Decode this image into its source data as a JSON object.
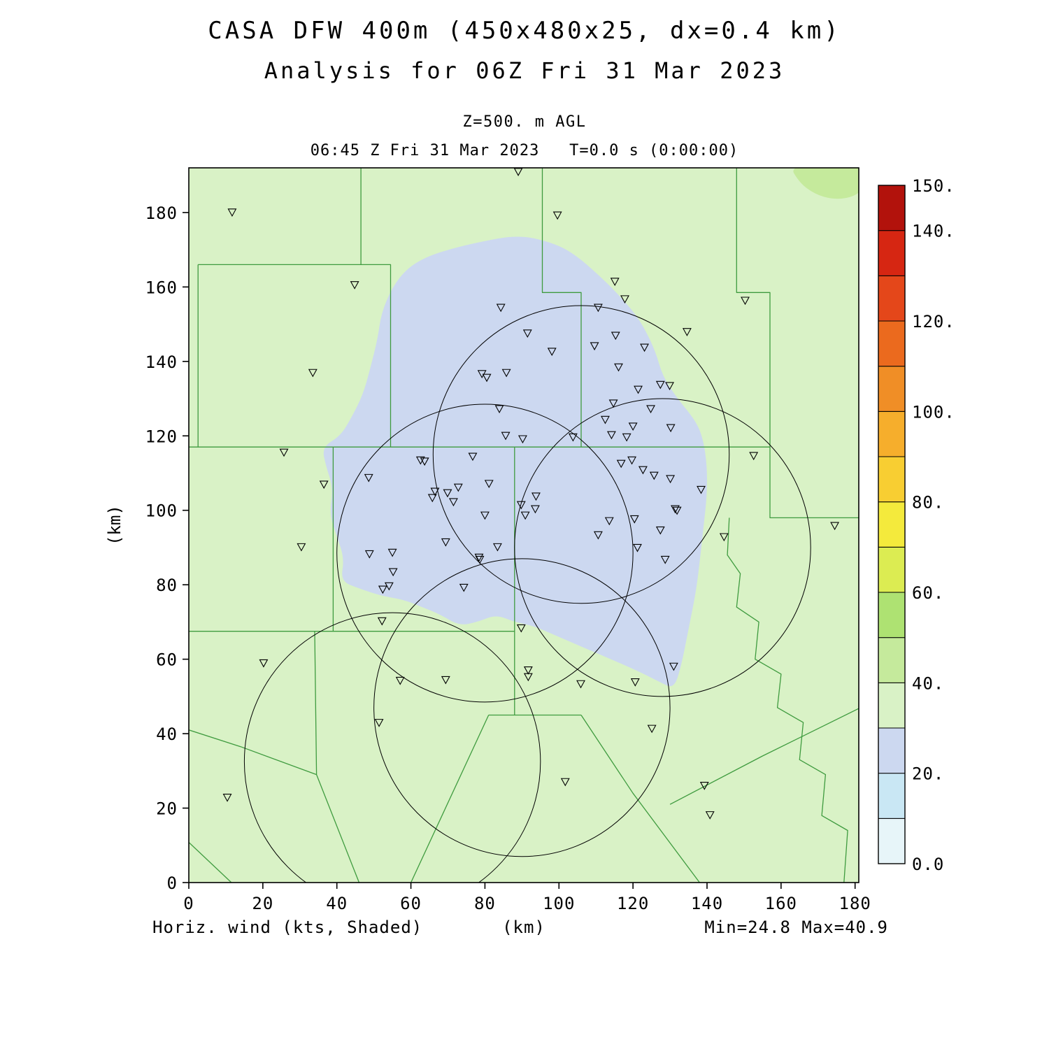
{
  "header": {
    "title1": "CASA DFW 400m (450x480x25, dx=0.4 km)",
    "title2": "Analysis for 06Z Fri 31 Mar 2023",
    "level_label": "Z=500. m AGL",
    "time_label": "06:45 Z Fri 31 Mar 2023   T=0.0 s (0:00:00)"
  },
  "footer": {
    "field_label": "Horiz. wind (kts, Shaded)",
    "axis_unit": "(km)",
    "minmax_label": "Min=24.8 Max=40.9"
  },
  "chart_data": {
    "type": "heatmap",
    "title": "CASA DFW 400m (450x480x25, dx=0.4 km)",
    "subtitle": "Analysis for 06Z Fri 31 Mar 2023",
    "level": "Z=500. m AGL",
    "valid_time": "06:45 Z Fri 31 Mar 2023",
    "forecast_time": "T=0.0 s (0:00:00)",
    "field": "Horiz. wind (kts, Shaded)",
    "min": 24.8,
    "max": 40.9,
    "xlabel": "(km)",
    "ylabel": "(km)",
    "xlim": [
      0,
      181
    ],
    "ylim": [
      0,
      192
    ],
    "xticks": [
      0,
      20,
      40,
      60,
      80,
      100,
      120,
      140,
      160,
      180
    ],
    "yticks": [
      0,
      20,
      40,
      60,
      80,
      100,
      120,
      140,
      160,
      180
    ],
    "grid": false,
    "colorbar": {
      "min": 0,
      "max": 150,
      "step": 10,
      "tick_values": [
        0,
        20,
        40,
        60,
        80,
        100,
        120,
        140,
        150
      ],
      "tick_labels": [
        "0.0",
        "20.",
        "40.",
        "60.",
        "80.",
        "100.",
        "120.",
        "140.",
        "150."
      ],
      "colors_bottom_to_top": [
        "#E7F5F9",
        "#C9E7F4",
        "#CCD8F0",
        "#D9F2C6",
        "#C5EA9C",
        "#AEE272",
        "#DCEC52",
        "#F4EA3C",
        "#F8CE32",
        "#F6AE2C",
        "#F08E26",
        "#EB6A1E",
        "#E4471A",
        "#D62612",
        "#B2120C"
      ]
    },
    "background_band": {
      "range": [
        30,
        40
      ],
      "color": "#D9F2C6"
    },
    "shaded_regions": [
      {
        "name": "wind-20-30-kts",
        "band": [
          20,
          30
        ],
        "color": "#CCD8F0",
        "polygon": [
          [
            89,
            174
          ],
          [
            98,
            172
          ],
          [
            104,
            169
          ],
          [
            111,
            163
          ],
          [
            117,
            157
          ],
          [
            122,
            151
          ],
          [
            126,
            143
          ],
          [
            128,
            136
          ],
          [
            132,
            130
          ],
          [
            137,
            124
          ],
          [
            139,
            119
          ],
          [
            140,
            112
          ],
          [
            140,
            104
          ],
          [
            139,
            95
          ],
          [
            138,
            86
          ],
          [
            137,
            78
          ],
          [
            135,
            68
          ],
          [
            133,
            58
          ],
          [
            131,
            52
          ],
          [
            127,
            54
          ],
          [
            121,
            57
          ],
          [
            114,
            60
          ],
          [
            107,
            63
          ],
          [
            100,
            66
          ],
          [
            93,
            69
          ],
          [
            88,
            70
          ],
          [
            83,
            72
          ],
          [
            78,
            70
          ],
          [
            73,
            69
          ],
          [
            68,
            72
          ],
          [
            63,
            74
          ],
          [
            58,
            76
          ],
          [
            52,
            77
          ],
          [
            46,
            79
          ],
          [
            41,
            81
          ],
          [
            42,
            87
          ],
          [
            40,
            93
          ],
          [
            38,
            99
          ],
          [
            39,
            106
          ],
          [
            37,
            112
          ],
          [
            36,
            117
          ],
          [
            41,
            120
          ],
          [
            44,
            125
          ],
          [
            47,
            131
          ],
          [
            49,
            138
          ],
          [
            51,
            146
          ],
          [
            52,
            153
          ],
          [
            55,
            160
          ],
          [
            59,
            165
          ],
          [
            64,
            168
          ],
          [
            70,
            170
          ],
          [
            78,
            172
          ]
        ]
      },
      {
        "name": "wind-40-50-kts",
        "band": [
          40,
          50
        ],
        "color": "#C5EA9C",
        "polygon": [
          [
            162,
            193
          ],
          [
            165,
            188
          ],
          [
            169,
            185
          ],
          [
            174,
            183.5
          ],
          [
            179,
            184
          ],
          [
            182,
            186
          ],
          [
            183,
            193
          ]
        ]
      }
    ],
    "radar_range_rings": {
      "radius_km": 40,
      "centers": [
        [
          106,
          115
        ],
        [
          80,
          88.5
        ],
        [
          128,
          90
        ],
        [
          55,
          32.5
        ],
        [
          90,
          47
        ]
      ]
    },
    "stations": [
      [
        11.7,
        180.1
      ],
      [
        89,
        191
      ],
      [
        99.6,
        179.3
      ],
      [
        44.8,
        160.6
      ],
      [
        115.1,
        161.5
      ],
      [
        117.8,
        156.8
      ],
      [
        110.6,
        154.5
      ],
      [
        150.3,
        156.4
      ],
      [
        84.3,
        154.5
      ],
      [
        91.5,
        147.6
      ],
      [
        115.3,
        147.0
      ],
      [
        134.6,
        148.0
      ],
      [
        98.1,
        142.7
      ],
      [
        109.6,
        144.2
      ],
      [
        123.1,
        143.8
      ],
      [
        33.5,
        137.0
      ],
      [
        79.2,
        136.7
      ],
      [
        85.8,
        137.0
      ],
      [
        80.5,
        135.7
      ],
      [
        116.1,
        138.5
      ],
      [
        121.4,
        132.5
      ],
      [
        127.4,
        133.8
      ],
      [
        129.9,
        133.5
      ],
      [
        114.7,
        128.8
      ],
      [
        124.8,
        127.3
      ],
      [
        83.9,
        127.3
      ],
      [
        112.5,
        124.4
      ],
      [
        120.0,
        122.6
      ],
      [
        130.2,
        122.2
      ],
      [
        114.2,
        120.3
      ],
      [
        118.3,
        119.7
      ],
      [
        85.6,
        120.1
      ],
      [
        90.2,
        119.2
      ],
      [
        103.8,
        119.7
      ],
      [
        25.7,
        115.6
      ],
      [
        76.7,
        114.5
      ],
      [
        152.6,
        114.7
      ],
      [
        62.6,
        113.5
      ],
      [
        63.7,
        113.2
      ],
      [
        116.8,
        112.6
      ],
      [
        119.7,
        113.5
      ],
      [
        122.7,
        110.9
      ],
      [
        125.7,
        109.4
      ],
      [
        48.6,
        108.8
      ],
      [
        36.5,
        107.0
      ],
      [
        66.5,
        105.1
      ],
      [
        69.9,
        104.7
      ],
      [
        72.8,
        106.2
      ],
      [
        81.1,
        107.2
      ],
      [
        130.1,
        108.5
      ],
      [
        138.4,
        105.6
      ],
      [
        65.8,
        103.4
      ],
      [
        71.5,
        102.3
      ],
      [
        93.8,
        103.8
      ],
      [
        93.6,
        100.4
      ],
      [
        89.8,
        101.5
      ],
      [
        80.0,
        98.7
      ],
      [
        90.9,
        98.7
      ],
      [
        113.6,
        97.2
      ],
      [
        120.4,
        97.7
      ],
      [
        131.4,
        100.4
      ],
      [
        131.9,
        100.0
      ],
      [
        174.5,
        95.9
      ],
      [
        110.6,
        93.4
      ],
      [
        127.4,
        94.7
      ],
      [
        30.4,
        90.2
      ],
      [
        69.4,
        91.5
      ],
      [
        83.4,
        90.2
      ],
      [
        121.2,
        90.0
      ],
      [
        144.6,
        92.9
      ],
      [
        48.8,
        88.3
      ],
      [
        55.0,
        88.7
      ],
      [
        78.4,
        87.4
      ],
      [
        78.6,
        86.8
      ],
      [
        55.2,
        83.5
      ],
      [
        128.7,
        86.8
      ],
      [
        54.1,
        79.7
      ],
      [
        52.4,
        78.8
      ],
      [
        74.3,
        79.3
      ],
      [
        52.2,
        70.3
      ],
      [
        89.8,
        68.4
      ],
      [
        20.2,
        59.0
      ],
      [
        131.0,
        58.1
      ],
      [
        91.7,
        57.1
      ],
      [
        57.1,
        54.3
      ],
      [
        69.4,
        54.5
      ],
      [
        91.7,
        55.3
      ],
      [
        105.9,
        53.4
      ],
      [
        120.6,
        53.9
      ],
      [
        51.4,
        43.0
      ],
      [
        125.1,
        41.4
      ],
      [
        101.7,
        27.1
      ],
      [
        139.3,
        26.1
      ],
      [
        10.4,
        22.9
      ],
      [
        140.8,
        18.2
      ]
    ],
    "county_boundaries": [
      [
        [
          0,
          117
        ],
        [
          157,
          117
        ]
      ],
      [
        [
          157,
          117
        ],
        [
          157,
          98
        ],
        [
          181.5,
          98
        ]
      ],
      [
        [
          95.5,
          192.5
        ],
        [
          95.5,
          158.5
        ],
        [
          106,
          158.5
        ],
        [
          106,
          117
        ]
      ],
      [
        [
          148,
          192.5
        ],
        [
          148,
          158.5
        ],
        [
          157,
          158.5
        ],
        [
          157,
          117
        ]
      ],
      [
        [
          46.5,
          192.5
        ],
        [
          46.5,
          166
        ]
      ],
      [
        [
          2.5,
          166
        ],
        [
          54.5,
          166
        ],
        [
          54.5,
          117
        ]
      ],
      [
        [
          2.5,
          166
        ],
        [
          2.5,
          117
        ]
      ],
      [
        [
          0,
          67.5
        ],
        [
          88,
          67.5
        ]
      ],
      [
        [
          39,
          117
        ],
        [
          39,
          67.5
        ]
      ],
      [
        [
          88,
          117
        ],
        [
          88,
          45
        ]
      ],
      [
        [
          81,
          45
        ],
        [
          106,
          45
        ]
      ],
      [
        [
          106,
          45
        ],
        [
          120,
          24
        ],
        [
          138,
          0
        ]
      ],
      [
        [
          81,
          45
        ],
        [
          60,
          0
        ]
      ],
      [
        [
          34,
          67.5
        ],
        [
          34.5,
          29
        ],
        [
          46,
          0
        ]
      ],
      [
        [
          0,
          41
        ],
        [
          14,
          36.5
        ],
        [
          34.5,
          29
        ]
      ],
      [
        [
          130,
          21
        ],
        [
          155,
          34
        ],
        [
          181.5,
          47
        ]
      ],
      [
        [
          146,
          98
        ],
        [
          145.5,
          88
        ],
        [
          149,
          83
        ],
        [
          148,
          74
        ],
        [
          154,
          70
        ],
        [
          153,
          60
        ],
        [
          160,
          56
        ],
        [
          159,
          47
        ],
        [
          166,
          43
        ],
        [
          165,
          33
        ],
        [
          172,
          29
        ],
        [
          171,
          18
        ],
        [
          178,
          14
        ],
        [
          177,
          0
        ]
      ],
      [
        [
          0,
          10.8
        ],
        [
          11.5,
          0
        ]
      ]
    ]
  },
  "style": {
    "land_color": "#D9F2C6",
    "county_line_color": "#3F9B3F",
    "ring_color": "#000000",
    "marker_color": "#000000",
    "axis_color": "#000000"
  }
}
